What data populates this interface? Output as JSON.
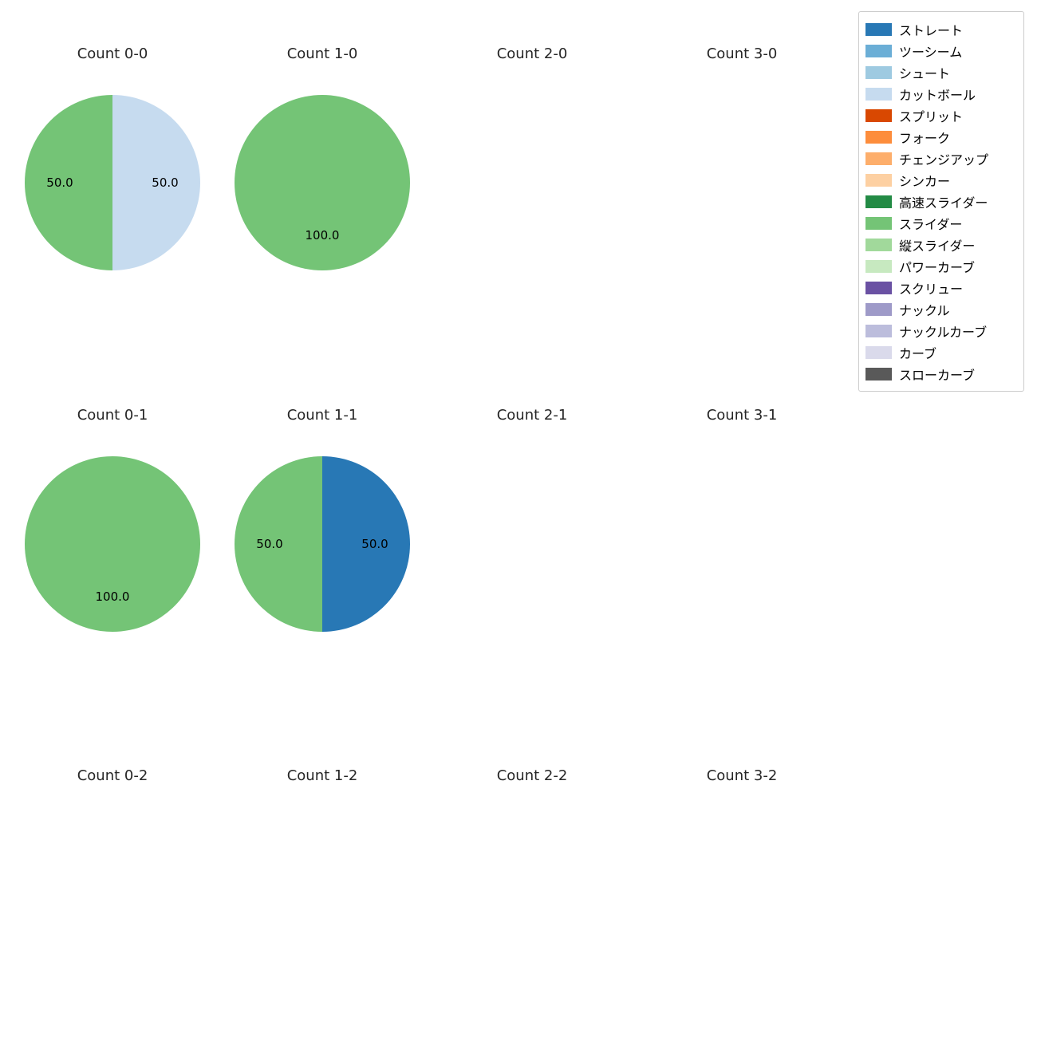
{
  "legend": {
    "position": "upper right",
    "items": [
      {
        "label": "ストレート",
        "color": "#2878b5"
      },
      {
        "label": "ツーシーム",
        "color": "#6baed6"
      },
      {
        "label": "シュート",
        "color": "#9ecae1"
      },
      {
        "label": "カットボール",
        "color": "#c6dbef"
      },
      {
        "label": "スプリット",
        "color": "#d94801"
      },
      {
        "label": "フォーク",
        "color": "#fd8d3c"
      },
      {
        "label": "チェンジアップ",
        "color": "#fdae6b"
      },
      {
        "label": "シンカー",
        "color": "#fdd0a2"
      },
      {
        "label": "高速スライダー",
        "color": "#238b45"
      },
      {
        "label": "スライダー",
        "color": "#74c476"
      },
      {
        "label": "縦スライダー",
        "color": "#a1d99b"
      },
      {
        "label": "パワーカーブ",
        "color": "#c7e9c0"
      },
      {
        "label": "スクリュー",
        "color": "#6a51a3"
      },
      {
        "label": "ナックル",
        "color": "#9e9ac8"
      },
      {
        "label": "ナックルカーブ",
        "color": "#bcbddc"
      },
      {
        "label": "カーブ",
        "color": "#dadaeb"
      },
      {
        "label": "スローカーブ",
        "color": "#595959"
      }
    ]
  },
  "chart_data": {
    "type": "pie",
    "grid": {
      "rows": 3,
      "cols": 4
    },
    "value_format": "percent",
    "start_angle": "top",
    "direction": "clockwise",
    "charts": [
      {
        "title": "Count 0-0",
        "slices": [
          {
            "label": "カットボール",
            "value": 50.0,
            "color": "#c6dbef"
          },
          {
            "label": "スライダー",
            "value": 50.0,
            "color": "#74c476"
          }
        ]
      },
      {
        "title": "Count 1-0",
        "slices": [
          {
            "label": "スライダー",
            "value": 100.0,
            "color": "#74c476"
          }
        ]
      },
      {
        "title": "Count 2-0",
        "slices": []
      },
      {
        "title": "Count 3-0",
        "slices": []
      },
      {
        "title": "Count 0-1",
        "slices": [
          {
            "label": "スライダー",
            "value": 100.0,
            "color": "#74c476"
          }
        ]
      },
      {
        "title": "Count 1-1",
        "slices": [
          {
            "label": "ストレート",
            "value": 50.0,
            "color": "#2878b5"
          },
          {
            "label": "スライダー",
            "value": 50.0,
            "color": "#74c476"
          }
        ]
      },
      {
        "title": "Count 2-1",
        "slices": []
      },
      {
        "title": "Count 3-1",
        "slices": []
      },
      {
        "title": "Count 0-2",
        "slices": []
      },
      {
        "title": "Count 1-2",
        "slices": []
      },
      {
        "title": "Count 2-2",
        "slices": []
      },
      {
        "title": "Count 3-2",
        "slices": []
      }
    ]
  }
}
